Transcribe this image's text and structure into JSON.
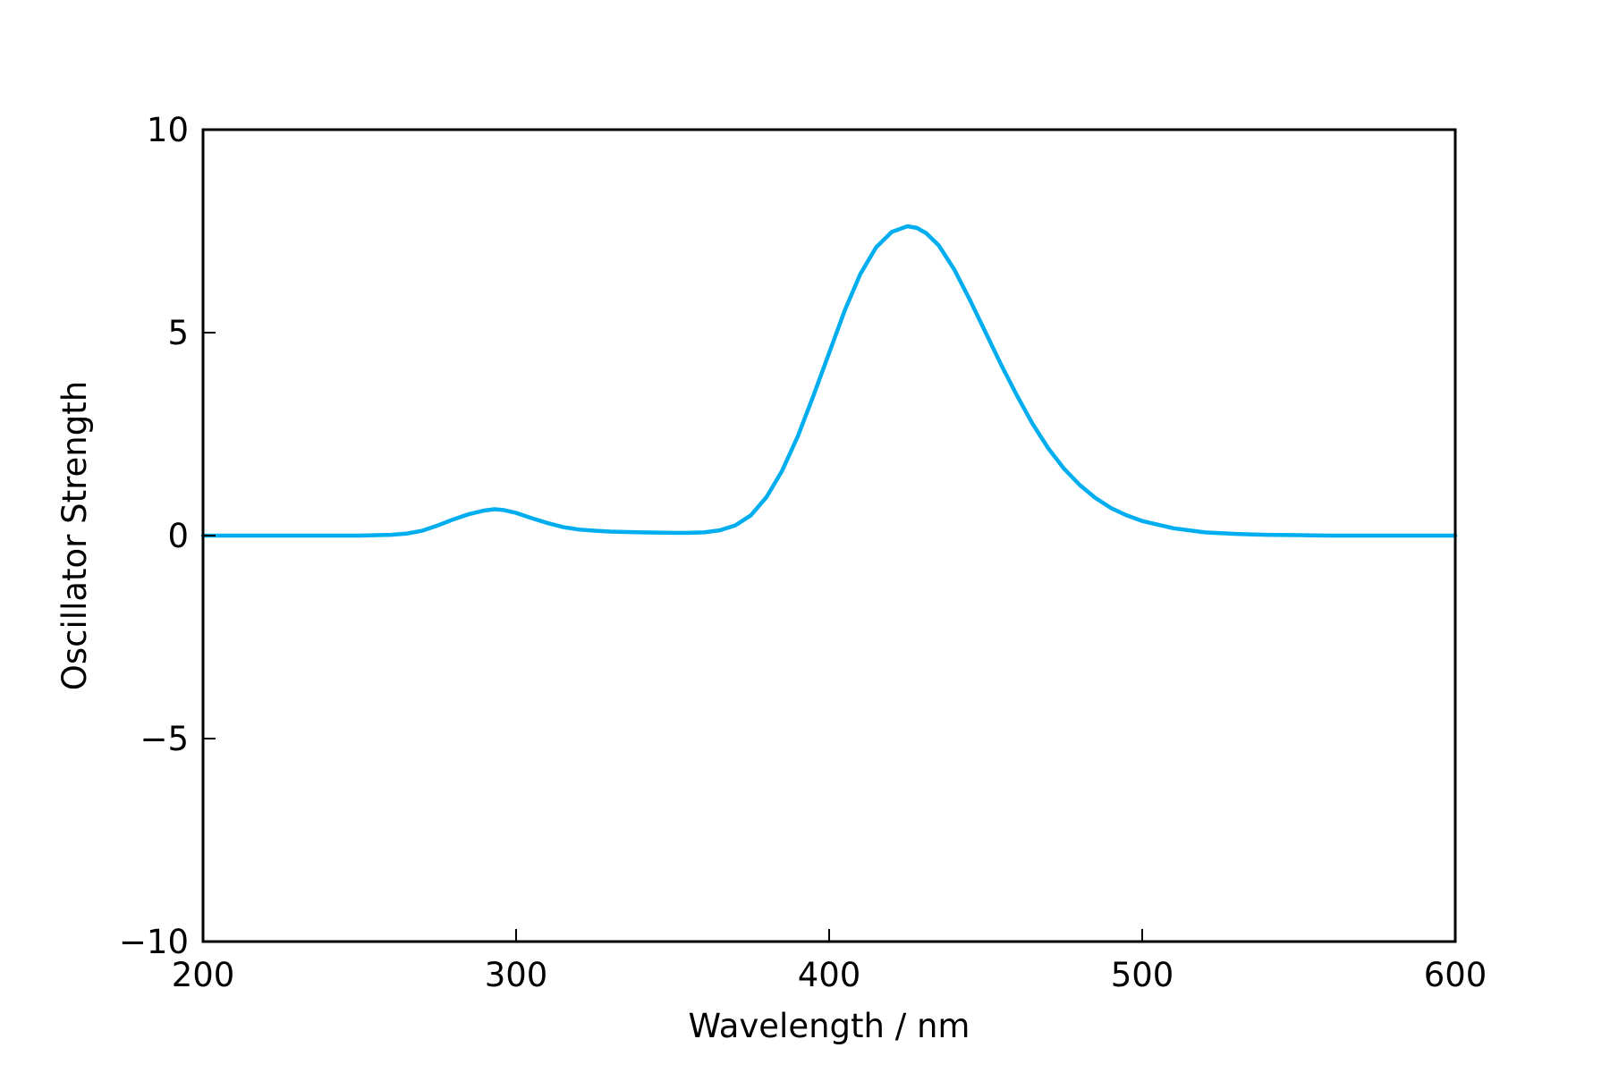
{
  "chart_data": {
    "type": "line",
    "title": "",
    "xlabel": "Wavelength / nm",
    "ylabel": "Oscillator Strength",
    "xlim": [
      200,
      600
    ],
    "ylim": [
      -10,
      10
    ],
    "xticks": [
      200,
      300,
      400,
      500,
      600
    ],
    "yticks": [
      -10,
      -5,
      0,
      5,
      10
    ],
    "xtick_labels": [
      "200",
      "300",
      "400",
      "500",
      "600"
    ],
    "ytick_labels": [
      "−10",
      "−5",
      "0",
      "5",
      "10"
    ],
    "grid": false,
    "legend": "none",
    "tick_direction": "in",
    "series": [
      {
        "color": "#00AEEF",
        "x": [
          200,
          220,
          240,
          250,
          260,
          265,
          270,
          275,
          280,
          285,
          290,
          293,
          296,
          300,
          305,
          310,
          315,
          320,
          325,
          330,
          340,
          350,
          355,
          360,
          365,
          370,
          375,
          380,
          385,
          390,
          395,
          400,
          405,
          410,
          415,
          420,
          425,
          428,
          431,
          435,
          440,
          445,
          450,
          455,
          460,
          465,
          470,
          475,
          480,
          485,
          490,
          495,
          500,
          510,
          520,
          530,
          540,
          550,
          560,
          580,
          600
        ],
        "y": [
          0.0,
          0.0,
          0.0,
          0.0,
          0.02,
          0.05,
          0.12,
          0.25,
          0.4,
          0.53,
          0.62,
          0.65,
          0.63,
          0.56,
          0.43,
          0.31,
          0.21,
          0.15,
          0.12,
          0.1,
          0.08,
          0.07,
          0.07,
          0.08,
          0.13,
          0.25,
          0.5,
          0.95,
          1.6,
          2.45,
          3.45,
          4.5,
          5.55,
          6.45,
          7.1,
          7.48,
          7.62,
          7.58,
          7.45,
          7.15,
          6.55,
          5.8,
          5.0,
          4.2,
          3.45,
          2.75,
          2.15,
          1.65,
          1.25,
          0.93,
          0.68,
          0.5,
          0.36,
          0.18,
          0.08,
          0.04,
          0.02,
          0.01,
          0.0,
          0.0,
          0.0
        ]
      }
    ]
  }
}
